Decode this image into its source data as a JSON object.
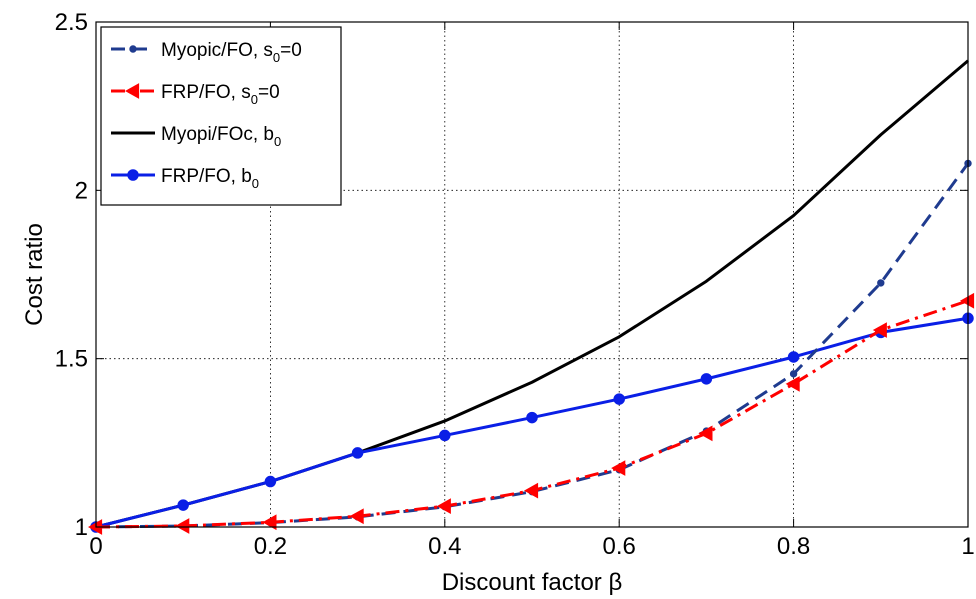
{
  "chart_data": {
    "type": "line",
    "xlabel": "Discount factor β",
    "ylabel": "Cost ratio",
    "xlim": [
      0,
      1
    ],
    "ylim": [
      1,
      2.5
    ],
    "x_ticks": [
      "0",
      "0.2",
      "0.4",
      "0.6",
      "0.8",
      "1"
    ],
    "y_ticks": [
      "1",
      "1.5",
      "2",
      "2.5"
    ],
    "grid": true,
    "legend_position": "top-left",
    "x": [
      0,
      0.1,
      0.2,
      0.3,
      0.4,
      0.5,
      0.6,
      0.7,
      0.8,
      0.9,
      1.0
    ],
    "series": [
      {
        "name": "Myopic/FO, s",
        "name_subscript": "0",
        "name_suffix": "=0",
        "color": "#1f3b8f",
        "line_style": "dashed",
        "marker": "dot",
        "values": [
          1.0,
          1.003,
          1.013,
          1.03,
          1.06,
          1.105,
          1.17,
          1.285,
          1.455,
          1.725,
          2.08
        ]
      },
      {
        "name": "FRP/FO, s",
        "name_subscript": "0",
        "name_suffix": "=0",
        "color": "#ff0000",
        "line_style": "dashdot",
        "marker": "triangle-left",
        "values": [
          1.0,
          1.003,
          1.014,
          1.032,
          1.062,
          1.108,
          1.175,
          1.278,
          1.425,
          1.585,
          1.672
        ]
      },
      {
        "name": "Myopi/FOc, b",
        "name_subscript": "0",
        "name_suffix": "",
        "color": "#000000",
        "line_style": "solid",
        "marker": "none",
        "values": [
          1.0,
          1.065,
          1.135,
          1.22,
          1.315,
          1.43,
          1.565,
          1.73,
          1.925,
          2.165,
          2.385
        ]
      },
      {
        "name": "FRP/FO, b",
        "name_subscript": "0",
        "name_suffix": "",
        "color": "#0a1fe6",
        "line_style": "solid",
        "marker": "circle",
        "values": [
          1.0,
          1.065,
          1.135,
          1.22,
          1.272,
          1.325,
          1.38,
          1.44,
          1.505,
          1.578,
          1.62
        ]
      }
    ]
  }
}
